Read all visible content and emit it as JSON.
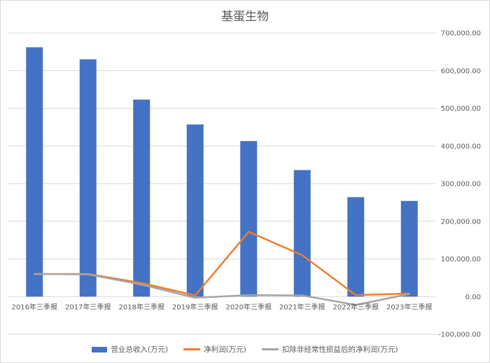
{
  "chart_data": {
    "type": "bar",
    "title": "基蛋生物",
    "xlabel": "",
    "ylabel": "",
    "categories": [
      "2016年三季报",
      "2017年三季报",
      "2018年三季报",
      "2019年三季报",
      "2020年三季报",
      "2021年三季报",
      "2022年三季报",
      "2023年三季报"
    ],
    "y_ticks": [
      "700,000.00",
      "600,000.00",
      "500,000.00",
      "400,000.00",
      "300,000.00",
      "200,000.00",
      "100,000.00",
      "0.00",
      "-100,000.00"
    ],
    "ylim": [
      -100000,
      700000
    ],
    "grid": true,
    "legend_position": "bottom",
    "series": [
      {
        "name": "营业总收入(万元)",
        "type": "bar",
        "color": "#4472c4",
        "values": [
          662000,
          630000,
          523000,
          457000,
          413000,
          336000,
          264000,
          254000
        ]
      },
      {
        "name": "净利润(万元)",
        "type": "line",
        "color": "#ed7d31",
        "values": [
          60000,
          60000,
          36000,
          3000,
          172000,
          110000,
          4000,
          8000
        ]
      },
      {
        "name": "扣除非经常性损益后的净利润(万元)",
        "type": "line",
        "color": "#a5a5a5",
        "values": [
          60000,
          59000,
          32000,
          -3000,
          4000,
          3000,
          -22000,
          7000
        ]
      }
    ]
  }
}
